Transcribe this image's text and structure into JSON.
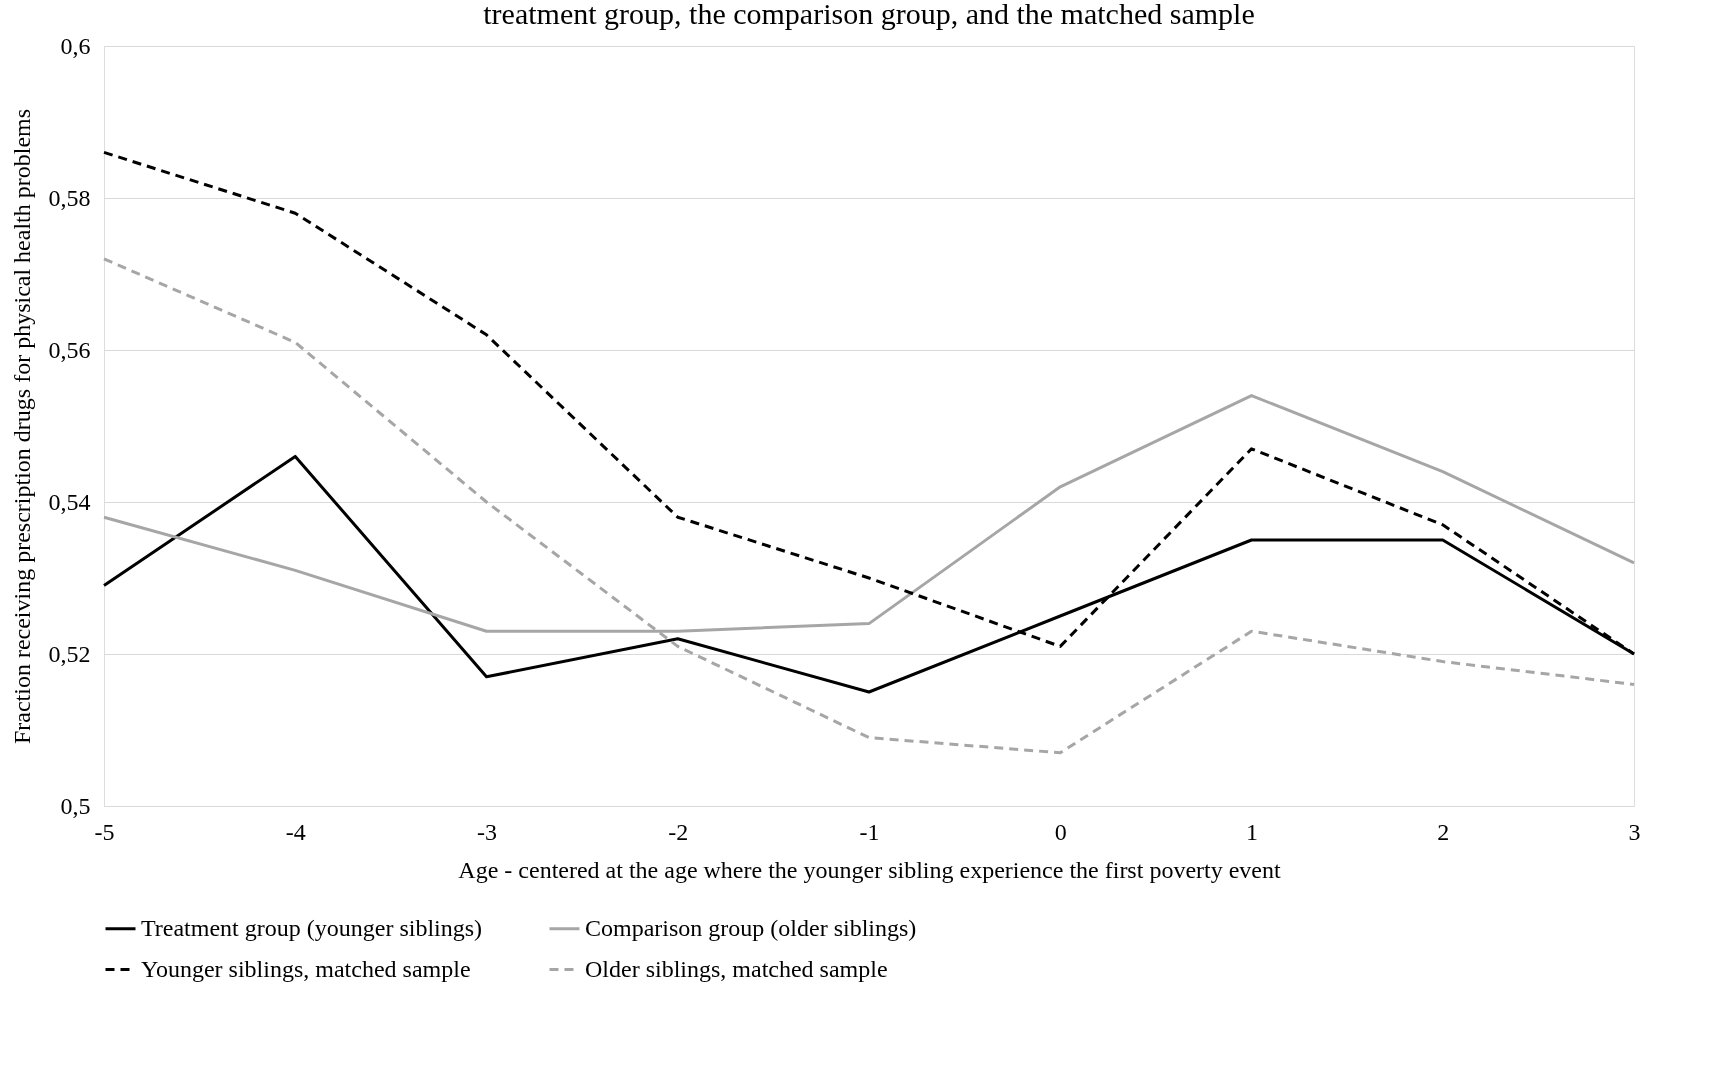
{
  "chart_data": {
    "type": "line",
    "title": "treatment group, the comparison group, and the matched sample",
    "xlabel": "Age - centered at the age where the younger sibling experience the first poverty event",
    "ylabel": "Fraction receiving prescription drugs for physical health problems",
    "x": [
      -5,
      -4,
      -3,
      -2,
      -1,
      0,
      1,
      2,
      3
    ],
    "series": [
      {
        "name": "Treatment group (younger siblings)",
        "color": "#000000",
        "line_style": "solid",
        "values": [
          0.529,
          0.546,
          0.517,
          0.522,
          0.515,
          0.525,
          0.535,
          0.535,
          0.52
        ]
      },
      {
        "name": "Comparison group (older siblings)",
        "color": "#a6a6a6",
        "line_style": "solid",
        "values": [
          0.538,
          0.531,
          0.523,
          0.523,
          0.524,
          0.542,
          0.554,
          0.544,
          0.532
        ]
      },
      {
        "name": "Younger siblings, matched sample",
        "color": "#000000",
        "line_style": "dashed",
        "values": [
          0.586,
          0.578,
          0.562,
          0.538,
          0.53,
          0.521,
          0.547,
          0.537,
          0.52
        ]
      },
      {
        "name": "Older siblings, matched sample",
        "color": "#a6a6a6",
        "line_style": "dashed",
        "values": [
          0.572,
          0.561,
          0.54,
          0.521,
          0.509,
          0.507,
          0.523,
          0.519,
          0.516
        ]
      }
    ],
    "xlim": [
      -5,
      3
    ],
    "xticks": [
      -5,
      -4,
      -3,
      -2,
      -1,
      0,
      1,
      2,
      3
    ],
    "ylim": [
      0.5,
      0.6
    ],
    "yticks": [
      {
        "value": 0.5,
        "label": "0,5"
      },
      {
        "value": 0.52,
        "label": "0,52"
      },
      {
        "value": 0.54,
        "label": "0,54"
      },
      {
        "value": 0.56,
        "label": "0,56"
      },
      {
        "value": 0.58,
        "label": "0,58"
      },
      {
        "value": 0.6,
        "label": "0,6"
      }
    ],
    "grid": "y",
    "legend": "bottom",
    "marker": "none"
  }
}
